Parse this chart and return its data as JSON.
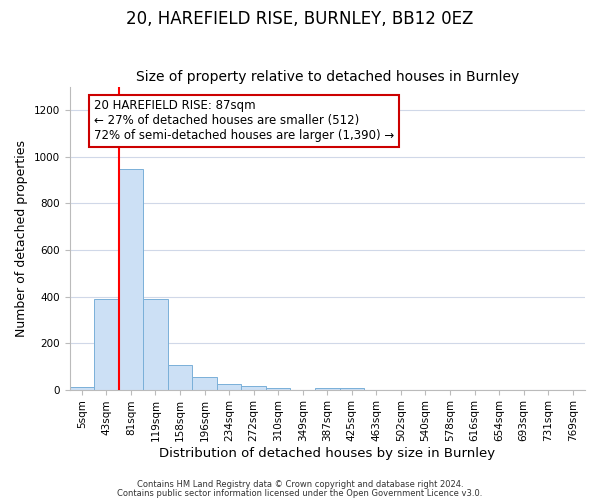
{
  "title": "20, HAREFIELD RISE, BURNLEY, BB12 0EZ",
  "subtitle": "Size of property relative to detached houses in Burnley",
  "xlabel": "Distribution of detached houses by size in Burnley",
  "ylabel": "Number of detached properties",
  "categories": [
    "5sqm",
    "43sqm",
    "81sqm",
    "119sqm",
    "158sqm",
    "196sqm",
    "234sqm",
    "272sqm",
    "310sqm",
    "349sqm",
    "387sqm",
    "425sqm",
    "463sqm",
    "502sqm",
    "540sqm",
    "578sqm",
    "616sqm",
    "654sqm",
    "693sqm",
    "731sqm",
    "769sqm"
  ],
  "values": [
    10,
    390,
    950,
    390,
    105,
    55,
    25,
    15,
    5,
    0,
    5,
    5,
    0,
    0,
    0,
    0,
    0,
    0,
    0,
    0,
    0
  ],
  "bar_color": "#cce0f5",
  "bar_edge_color": "#7ab0d8",
  "red_line_x": 1.5,
  "annotation_text": "20 HAREFIELD RISE: 87sqm\n← 27% of detached houses are smaller (512)\n72% of semi-detached houses are larger (1,390) →",
  "annotation_box_color": "#ffffff",
  "annotation_box_edge_color": "#cc0000",
  "ylim": [
    0,
    1300
  ],
  "yticks": [
    0,
    200,
    400,
    600,
    800,
    1000,
    1200
  ],
  "footer1": "Contains HM Land Registry data © Crown copyright and database right 2024.",
  "footer2": "Contains public sector information licensed under the Open Government Licence v3.0.",
  "title_fontsize": 12,
  "subtitle_fontsize": 10,
  "axis_fontsize": 9,
  "tick_fontsize": 7.5,
  "background_color": "#ffffff",
  "grid_color": "#d0d8e8"
}
